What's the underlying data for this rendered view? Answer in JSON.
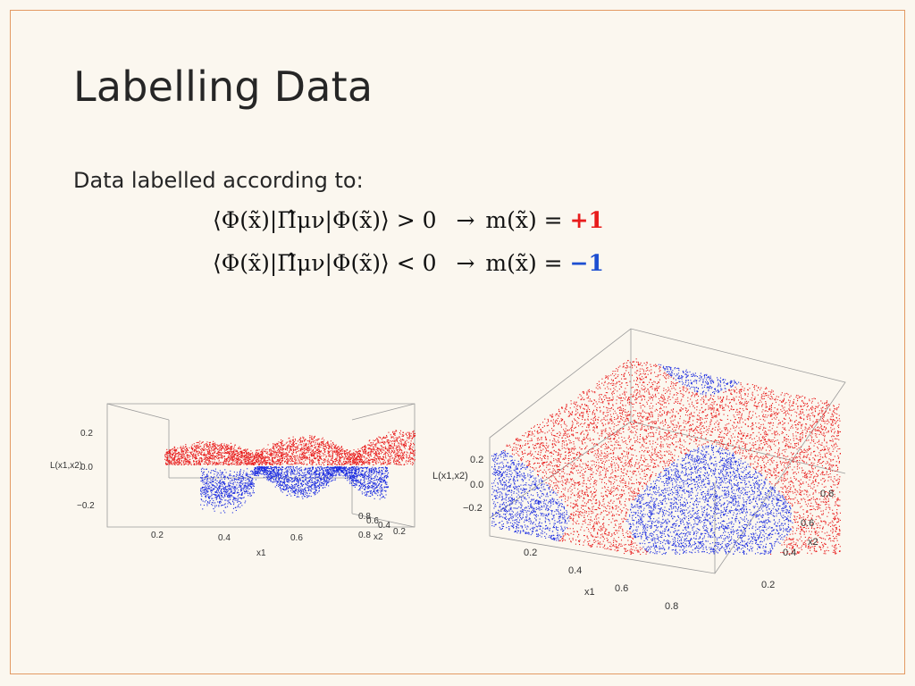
{
  "slide": {
    "title": "Labelling Data",
    "lead": "Data labelled according to:",
    "equations": [
      {
        "lhs": "⟨Φ(x̃)|Π̂μν|Φ(x̃)⟩ > 0",
        "arrow": "→",
        "rhs": "m(x̃) =",
        "label": "+1",
        "label_color": "#e81c1c"
      },
      {
        "lhs": "⟨Φ(x̃)|Π̂μν|Φ(x̃)⟩ < 0",
        "arrow": "→",
        "rhs": "m(x̃) =",
        "label": "−1",
        "label_color": "#1d4fd1"
      }
    ],
    "frame_color": "#e39a63",
    "background": "#fbf7ef"
  },
  "plots": {
    "left": {
      "ylabel": "L(x1,x2)",
      "xlabel": "x1",
      "x2label": "x2",
      "y_ticks": [
        "0.2",
        "0.0",
        "−0.2"
      ],
      "x1_ticks": [
        "0.2",
        "0.4",
        "0.6",
        "0.8"
      ],
      "x2_ticks": [
        "0.8",
        "0.6",
        "0.4",
        "0.2"
      ]
    },
    "right": {
      "ylabel": "L(x1,x2)",
      "xlabel": "x1",
      "x2label": "x2",
      "y_ticks": [
        "0.2",
        "0.0",
        "−0.2"
      ],
      "x1_ticks": [
        "0.2",
        "0.4",
        "0.6",
        "0.8"
      ],
      "x2_ticks": [
        "0.8",
        "0.6",
        "0.4",
        "0.2"
      ]
    },
    "colors": {
      "positive": "#e81c1c",
      "negative": "#1d2ee0"
    }
  }
}
